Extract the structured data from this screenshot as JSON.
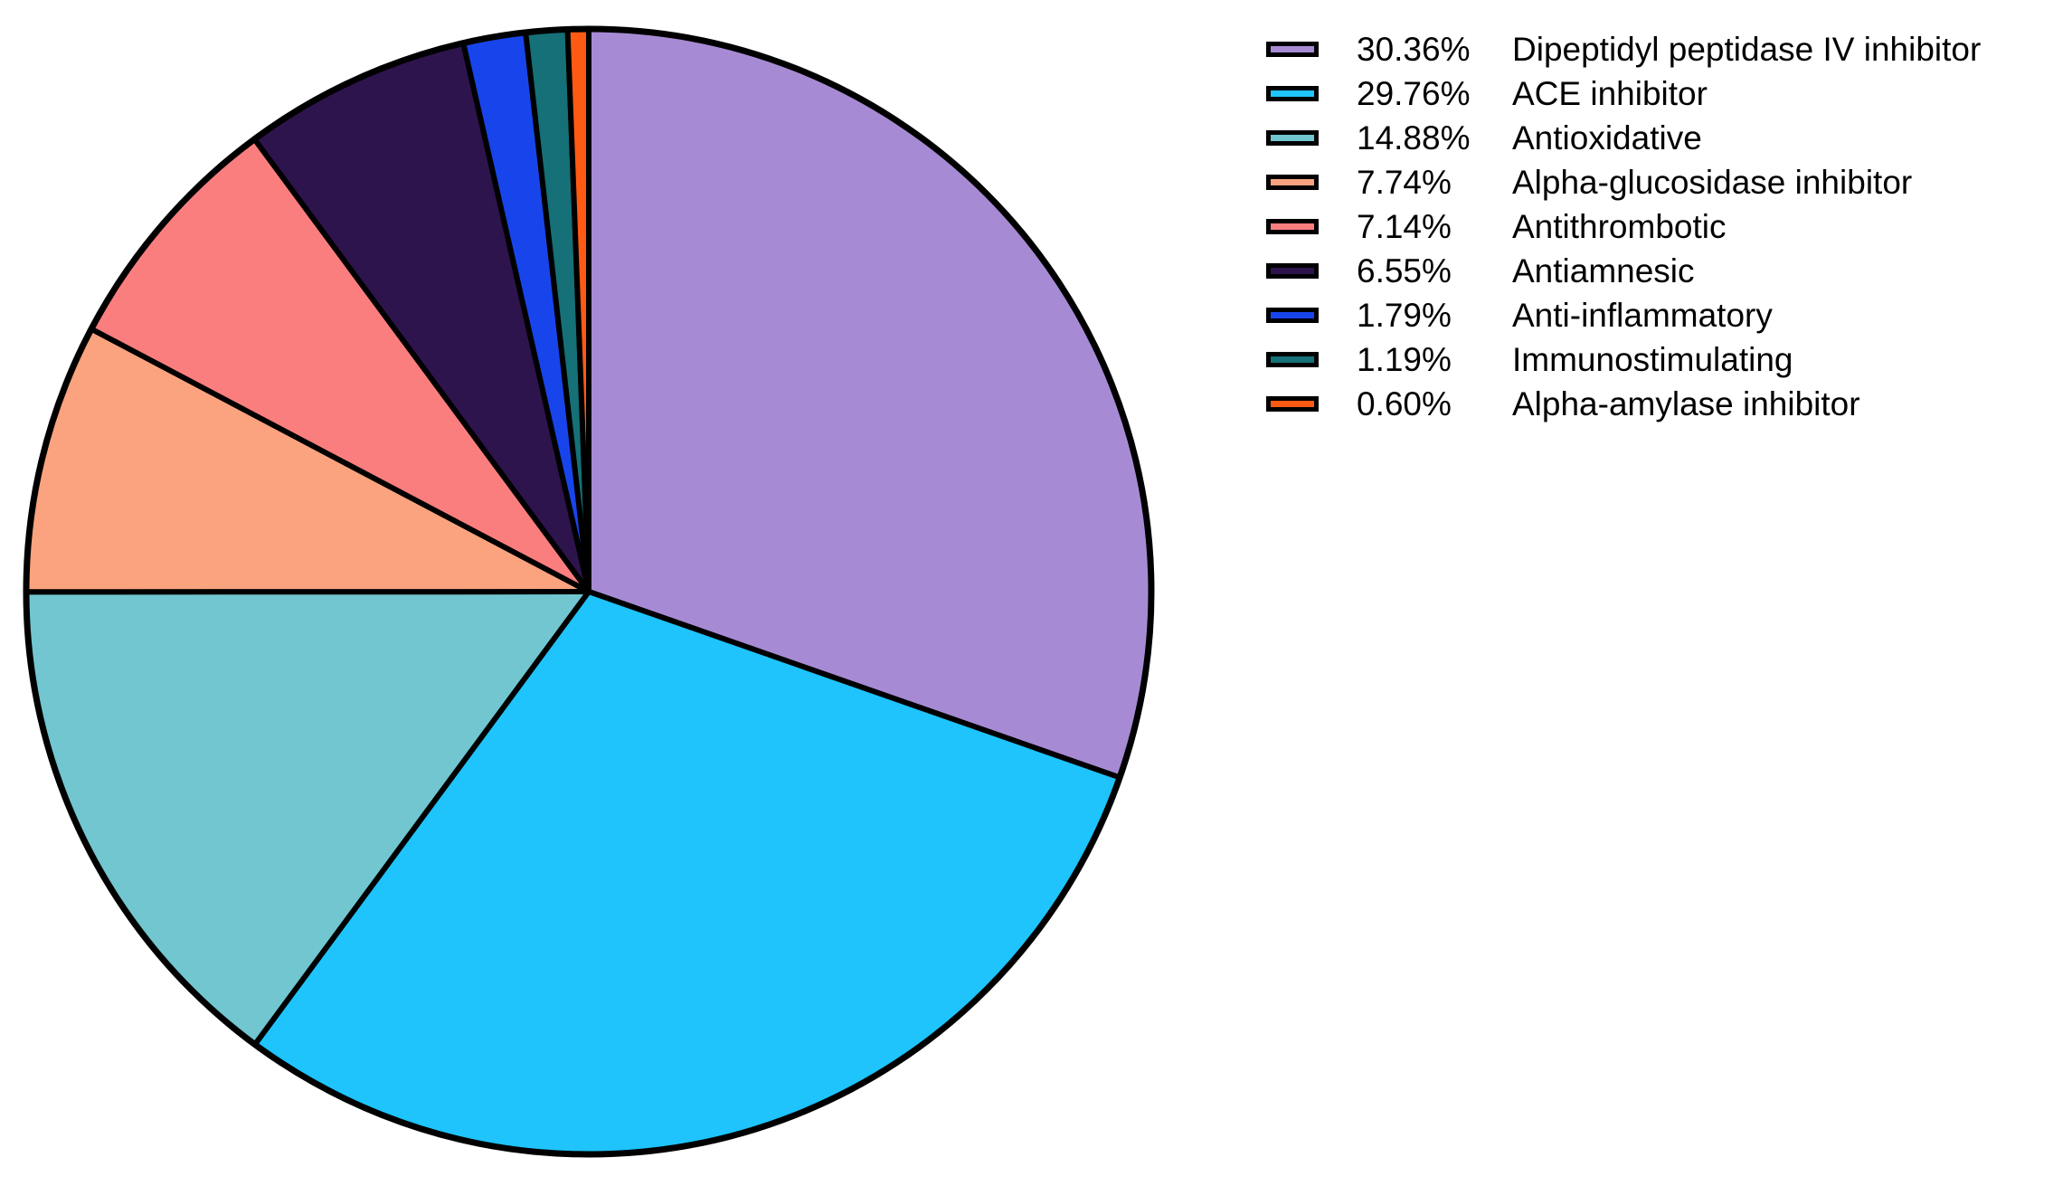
{
  "chart_data": {
    "type": "pie",
    "start_angle_deg": 0,
    "direction": "clockwise",
    "stroke_color": "#000000",
    "legend_placement": "top-right",
    "slices": [
      {
        "label": "Dipeptidyl peptidase IV inhibitor",
        "percent_text": "30.36%",
        "value": 30.36,
        "color": "#A68BD4"
      },
      {
        "label": "ACE inhibitor",
        "percent_text": "29.76%",
        "value": 29.76,
        "color": "#1EC4FB"
      },
      {
        "label": "Antioxidative",
        "percent_text": "14.88%",
        "value": 14.88,
        "color": "#71C6D0"
      },
      {
        "label": "Alpha-glucosidase inhibitor",
        "percent_text": "7.74%",
        "value": 7.74,
        "color": "#FAA37E"
      },
      {
        "label": "Antithrombotic",
        "percent_text": "7.14%",
        "value": 7.14,
        "color": "#FB7E7F"
      },
      {
        "label": "Antiamnesic",
        "percent_text": "6.55%",
        "value": 6.55,
        "color": "#2E144D"
      },
      {
        "label": "Anti-inflammatory",
        "percent_text": "1.79%",
        "value": 1.79,
        "color": "#1845EB"
      },
      {
        "label": "Immunostimulating",
        "percent_text": "1.19%",
        "value": 1.19,
        "color": "#157077"
      },
      {
        "label": "Alpha-amylase inhibitor",
        "percent_text": "0.60%",
        "value": 0.6,
        "color": "#FF5A14"
      }
    ]
  }
}
